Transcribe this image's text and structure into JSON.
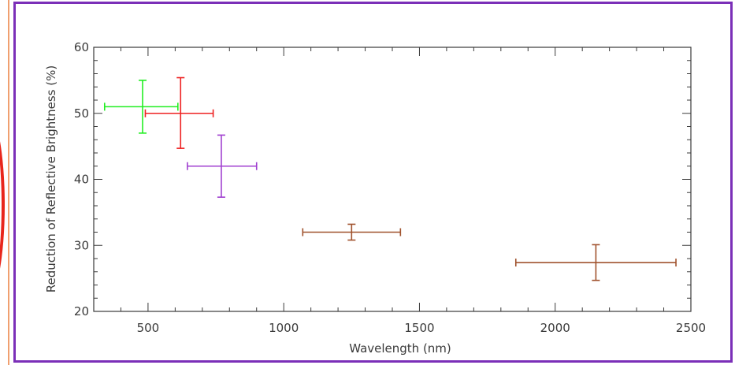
{
  "chart_data": {
    "type": "scatter",
    "title": "",
    "xlabel": "Wavelength (nm)",
    "ylabel": "Reduction of Reflective Brightness (%)",
    "xlim": [
      300,
      2500
    ],
    "ylim": [
      20,
      60
    ],
    "x_ticks": [
      500,
      1000,
      1500,
      2000,
      2500
    ],
    "y_ticks": [
      20,
      30,
      40,
      50,
      60
    ],
    "grid": false,
    "legend": "none",
    "points": [
      {
        "x": 480,
        "y": 51.0,
        "xerr": [
          340,
          610
        ],
        "yerr": [
          47.0,
          55.0
        ],
        "color": "#22ee22"
      },
      {
        "x": 620,
        "y": 50.0,
        "xerr": [
          490,
          740
        ],
        "yerr": [
          44.7,
          55.4
        ],
        "color": "#ee2222"
      },
      {
        "x": 770,
        "y": 42.0,
        "xerr": [
          645,
          900
        ],
        "yerr": [
          37.3,
          46.7
        ],
        "color": "#a040d0"
      },
      {
        "x": 1250,
        "y": 32.0,
        "xerr": [
          1070,
          1430
        ],
        "yerr": [
          30.8,
          33.2
        ],
        "color": "#a0522d"
      },
      {
        "x": 2150,
        "y": 27.4,
        "xerr": [
          1855,
          2445
        ],
        "yerr": [
          24.7,
          30.1
        ],
        "color": "#a0522d"
      }
    ]
  },
  "decor": {
    "frame_color": "#7b2fb8",
    "strip_edge_color": "#f0a070",
    "strip_arc_color": "#e8261c"
  }
}
